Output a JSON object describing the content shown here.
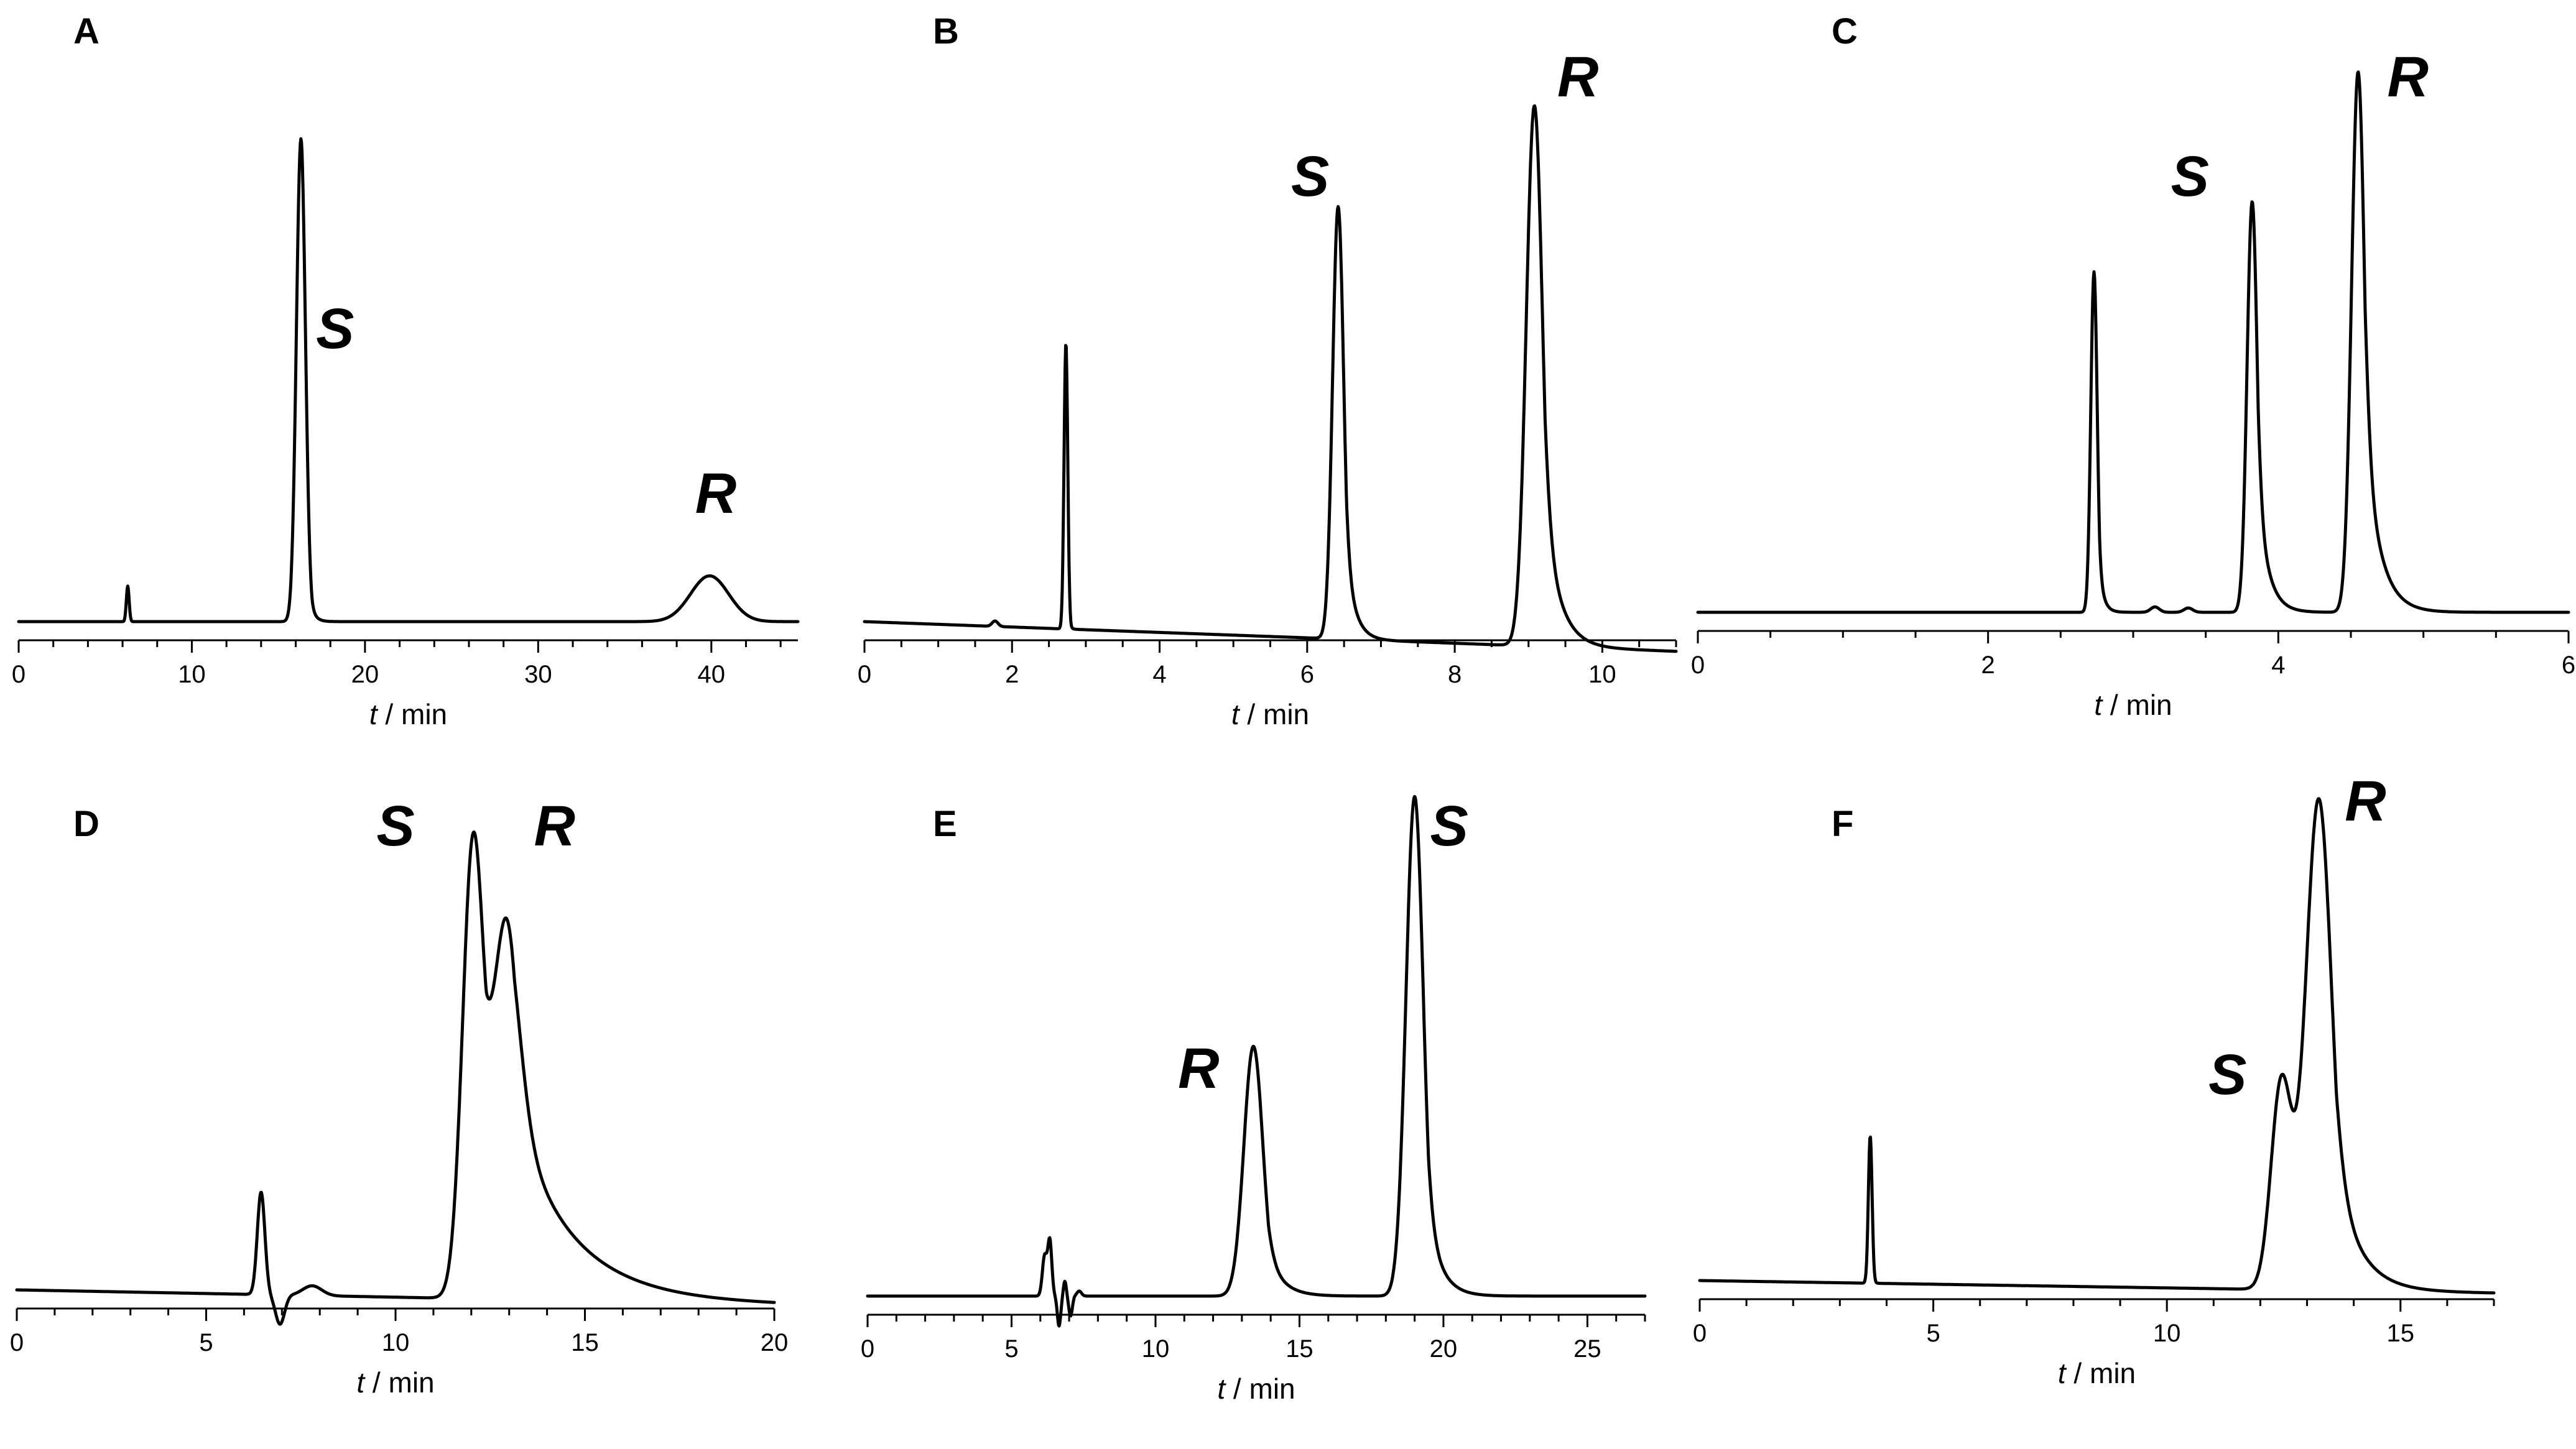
{
  "chart_data": [
    {
      "id": "A",
      "type": "line",
      "panel_label": "A",
      "xlabel": {
        "italic": "t",
        "rest": " / min"
      },
      "xlim": [
        0,
        45
      ],
      "major_ticks": [
        0,
        10,
        20,
        30,
        40
      ],
      "minor_step": 2,
      "ylim": [
        0,
        1
      ],
      "baseline_y": 0.035,
      "drift": 0,
      "peaks": [
        {
          "t": 6.3,
          "h": 0.07,
          "w": 0.08,
          "tail": 0.03
        },
        {
          "t": 16.3,
          "h": 0.95,
          "w": 0.26,
          "tail": 0.25
        },
        {
          "t": 39.9,
          "h": 0.09,
          "w": 1.1,
          "tail": 0.6
        }
      ],
      "annotations": [
        {
          "text": "S",
          "t": 16.3
        },
        {
          "text": "R",
          "t": 39.9
        }
      ]
    },
    {
      "id": "B",
      "type": "line",
      "panel_label": "B",
      "xlabel": {
        "italic": "t",
        "rest": " / min"
      },
      "xlim": [
        0,
        11
      ],
      "major_ticks": [
        0,
        2,
        4,
        6,
        8,
        10
      ],
      "minor_step": 0.5,
      "ylim": [
        0,
        1
      ],
      "baseline_y": 0.035,
      "drift": -0.005,
      "peaks": [
        {
          "t": 1.77,
          "h": 0.01,
          "w": 0.04,
          "tail": 0.03
        },
        {
          "t": 2.73,
          "h": 0.53,
          "w": 0.025,
          "tail": 0.02
        },
        {
          "t": 6.42,
          "h": 0.8,
          "w": 0.075,
          "tail": 0.12
        },
        {
          "t": 9.08,
          "h": 1.0,
          "w": 0.11,
          "tail": 0.2
        }
      ],
      "annotations": [
        {
          "text": "S",
          "t": 6.42
        },
        {
          "text": "R",
          "t": 9.08
        }
      ]
    },
    {
      "id": "C",
      "type": "line",
      "panel_label": "C",
      "xlabel": {
        "italic": "t",
        "rest": " / min"
      },
      "xlim": [
        0,
        6
      ],
      "major_ticks": [
        0,
        2,
        4,
        6
      ],
      "minor_step": 0.5,
      "ylim": [
        0,
        1
      ],
      "baseline_y": 0.055,
      "drift": 0,
      "peaks": [
        {
          "t": 2.73,
          "h": 0.63,
          "w": 0.022,
          "tail": 0.03
        },
        {
          "t": 3.15,
          "h": 0.01,
          "w": 0.03,
          "tail": 0.02
        },
        {
          "t": 3.38,
          "h": 0.008,
          "w": 0.03,
          "tail": 0.02
        },
        {
          "t": 3.82,
          "h": 0.76,
          "w": 0.035,
          "tail": 0.07
        },
        {
          "t": 4.55,
          "h": 1.0,
          "w": 0.045,
          "tail": 0.1
        }
      ],
      "annotations": [
        {
          "text": "S",
          "t": 3.82
        },
        {
          "text": "R",
          "t": 4.55
        }
      ]
    },
    {
      "id": "D",
      "type": "line",
      "panel_label": "D",
      "xlabel": {
        "italic": "t",
        "rest": " / min"
      },
      "xlim": [
        0,
        20
      ],
      "major_ticks": [
        0,
        5,
        10,
        15,
        20
      ],
      "minor_step": 1,
      "ylim": [
        0,
        1
      ],
      "baseline_y": 0.13,
      "drift": -0.0015,
      "peaks": [
        {
          "t": 6.45,
          "h": 0.21,
          "w": 0.1,
          "tail": 0.03
        },
        {
          "t": 6.95,
          "h": -0.06,
          "w": 0.12,
          "tail": 0.1
        },
        {
          "t": 7.8,
          "h": 0.02,
          "w": 0.25,
          "tail": 0.1
        },
        {
          "t": 12.05,
          "h": 0.93,
          "w": 0.28,
          "tail": 0.55
        },
        {
          "t": 12.95,
          "h": 0.68,
          "w": 0.35,
          "tail": 1.55
        }
      ],
      "annotations": [
        {
          "text": "S",
          "t": 10.0
        },
        {
          "text": "R",
          "t": 14.2
        }
      ]
    },
    {
      "id": "E",
      "type": "line",
      "panel_label": "E",
      "xlabel": {
        "italic": "t",
        "rest": " / min"
      },
      "xlim": [
        0,
        27
      ],
      "major_ticks": [
        0,
        5,
        10,
        15,
        20,
        25
      ],
      "minor_step": 1,
      "ylim": [
        0,
        1
      ],
      "baseline_y": 0.04,
      "drift": 0,
      "peaks": [
        {
          "t": 6.15,
          "h": 0.08,
          "w": 0.08,
          "tail": 0.05
        },
        {
          "t": 6.33,
          "h": 0.11,
          "w": 0.07,
          "tail": 0.05
        },
        {
          "t": 6.65,
          "h": -0.06,
          "w": 0.06,
          "tail": 0.03
        },
        {
          "t": 6.85,
          "h": 0.03,
          "w": 0.05,
          "tail": 0.03
        },
        {
          "t": 7.05,
          "h": -0.04,
          "w": 0.06,
          "tail": 0.03
        },
        {
          "t": 7.35,
          "h": 0.01,
          "w": 0.08,
          "tail": 0.05
        },
        {
          "t": 13.4,
          "h": 0.5,
          "w": 0.33,
          "tail": 0.5
        },
        {
          "t": 19.0,
          "h": 1.0,
          "w": 0.3,
          "tail": 0.45
        }
      ],
      "annotations": [
        {
          "text": "R",
          "t": 11.5
        },
        {
          "text": "S",
          "t": 20.2
        }
      ]
    },
    {
      "id": "F",
      "type": "line",
      "panel_label": "F",
      "xlabel": {
        "italic": "t",
        "rest": " / min"
      },
      "xlim": [
        0,
        17
      ],
      "major_ticks": [
        0,
        5,
        10,
        15
      ],
      "minor_step": 1,
      "ylim": [
        0,
        1
      ],
      "baseline_y": 0.08,
      "drift": -0.0015,
      "peaks": [
        {
          "t": 3.65,
          "h": 0.3,
          "w": 0.04,
          "tail": 0.03
        },
        {
          "t": 12.45,
          "h": 0.42,
          "w": 0.22,
          "tail": 0.18
        },
        {
          "t": 13.25,
          "h": 1.0,
          "w": 0.28,
          "tail": 0.5
        }
      ],
      "annotations": [
        {
          "text": "S",
          "t": 11.3
        },
        {
          "text": "R",
          "t": 14.25
        }
      ]
    }
  ]
}
